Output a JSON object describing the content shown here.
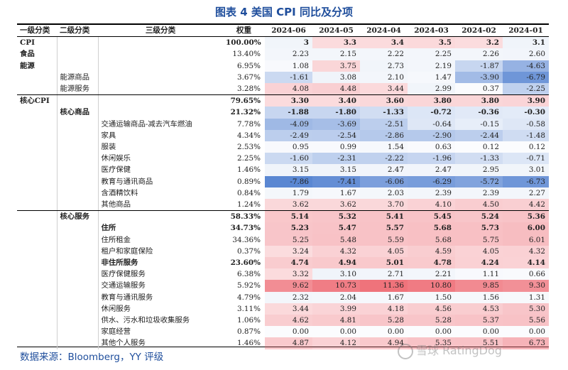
{
  "title": "图表 4 美国 CPI 同比及分项",
  "source": "数据来源：Bloomberg，YY 评级",
  "watermark": "雪球 RatingDog",
  "headers": {
    "level1": "一级分类",
    "level2": "二级分类",
    "level3": "三级分类",
    "weight": "权重",
    "months": [
      "2024-06",
      "2024-05",
      "2024-04",
      "2024-03",
      "2024-02",
      "2024-01"
    ]
  },
  "rows": [
    {
      "c1": "CPI",
      "c2": "",
      "c3": "",
      "w": "100.00%",
      "v": [
        "3",
        "3.3",
        "3.4",
        "3.5",
        "3.2",
        "3.1"
      ],
      "bold": true
    },
    {
      "c1": "食品",
      "c2": "",
      "c3": "",
      "w": "13.40%",
      "v": [
        "2.23",
        "2.15",
        "2.22",
        "2.25",
        "2.26",
        "2.60"
      ],
      "bold": false,
      "c1bold": true
    },
    {
      "c1": "能源",
      "c2": "",
      "c3": "",
      "w": "6.95%",
      "v": [
        "1.08",
        "3.75",
        "2.73",
        "2.19",
        "-1.87",
        "-4.63"
      ],
      "bold": false,
      "c1bold": true
    },
    {
      "c1": "",
      "c2": "能源商品",
      "c3": "",
      "w": "3.67%",
      "v": [
        "-1.61",
        "3.08",
        "2.10",
        "1.47",
        "-3.90",
        "-6.79"
      ],
      "bold": false
    },
    {
      "c1": "",
      "c2": "能源服务",
      "c3": "",
      "w": "3.28%",
      "v": [
        "4.08",
        "4.48",
        "3.44",
        "2.99",
        "0.37",
        "-2.25"
      ],
      "bold": false,
      "sep": true
    },
    {
      "c1": "核心CPI",
      "c2": "",
      "c3": "",
      "w": "79.65%",
      "v": [
        "3.30",
        "3.40",
        "3.60",
        "3.80",
        "3.80",
        "3.90"
      ],
      "bold": true
    },
    {
      "c1": "",
      "c2": "核心商品",
      "c3": "",
      "w": "21.32%",
      "v": [
        "-1.88",
        "-1.80",
        "-1.33",
        "-0.72",
        "-0.36",
        "-0.30"
      ],
      "bold": true
    },
    {
      "c1": "",
      "c2": "",
      "c3": "交通运输商品-减去汽车燃油",
      "w": "7.78%",
      "v": [
        "-4.09",
        "-3.69",
        "-2.51",
        "-0.64",
        "-0.15",
        "-0.58"
      ],
      "bold": false
    },
    {
      "c1": "",
      "c2": "",
      "c3": "家具",
      "w": "4.34%",
      "v": [
        "-2.49",
        "-2.54",
        "-2.86",
        "-2.90",
        "-2.44",
        "-1.48"
      ],
      "bold": false
    },
    {
      "c1": "",
      "c2": "",
      "c3": "服装",
      "w": "2.53%",
      "v": [
        "0.95",
        "0.99",
        "1.54",
        "0.63",
        "0.12",
        "0.12"
      ],
      "bold": false
    },
    {
      "c1": "",
      "c2": "",
      "c3": "休闲娱乐",
      "w": "2.25%",
      "v": [
        "-1.60",
        "-2.31",
        "-2.22",
        "-1.96",
        "-1.33",
        "-0.71"
      ],
      "bold": false
    },
    {
      "c1": "",
      "c2": "",
      "c3": "医疗保健",
      "w": "1.46%",
      "v": [
        "3.15",
        "3.15",
        "2.47",
        "2.47",
        "2.95",
        "3.01"
      ],
      "bold": false
    },
    {
      "c1": "",
      "c2": "",
      "c3": "教育与通讯商品",
      "w": "0.89%",
      "v": [
        "-7.86",
        "-7.41",
        "-6.06",
        "-6.29",
        "-5.72",
        "-6.73"
      ],
      "bold": false
    },
    {
      "c1": "",
      "c2": "",
      "c3": "含酒精饮料",
      "w": "0.84%",
      "v": [
        "1.79",
        "1.67",
        "2.03",
        "2.39",
        "2.39",
        "2.27"
      ],
      "bold": false
    },
    {
      "c1": "",
      "c2": "",
      "c3": "其他商品",
      "w": "1.24%",
      "v": [
        "3.62",
        "3.62",
        "3.70",
        "4.10",
        "4.50",
        "4.42"
      ],
      "bold": false,
      "sep": true
    },
    {
      "c1": "",
      "c2": "核心服务",
      "c3": "",
      "w": "58.33%",
      "v": [
        "5.14",
        "5.32",
        "5.41",
        "5.45",
        "5.24",
        "5.36"
      ],
      "bold": true
    },
    {
      "c1": "",
      "c2": "",
      "c3": "住所",
      "w": "34.73%",
      "v": [
        "5.23",
        "5.47",
        "5.57",
        "5.68",
        "5.73",
        "6.00"
      ],
      "bold": true
    },
    {
      "c1": "",
      "c2": "",
      "c3": "住所租金",
      "w": "34.36%",
      "v": [
        "5.25",
        "5.48",
        "5.59",
        "5.68",
        "5.75",
        "6.01"
      ],
      "bold": false
    },
    {
      "c1": "",
      "c2": "",
      "c3": "租户和家庭保险",
      "w": "0.37%",
      "v": [
        "3.24",
        "4.32",
        "4.05",
        "4.59",
        "4.05",
        "4.32"
      ],
      "bold": false
    },
    {
      "c1": "",
      "c2": "",
      "c3": "非住所服务",
      "w": "23.60%",
      "v": [
        "4.74",
        "4.94",
        "5.01",
        "4.78",
        "4.24",
        "4.14"
      ],
      "bold": true
    },
    {
      "c1": "",
      "c2": "",
      "c3": "医疗保健服务",
      "w": "6.38%",
      "v": [
        "3.32",
        "3.10",
        "2.71",
        "2.21",
        "1.11",
        "0.66"
      ],
      "bold": false
    },
    {
      "c1": "",
      "c2": "",
      "c3": "交通运输服务",
      "w": "5.92%",
      "v": [
        "9.62",
        "10.73",
        "11.36",
        "10.80",
        "9.85",
        "9.30"
      ],
      "bold": false
    },
    {
      "c1": "",
      "c2": "",
      "c3": "教育与通讯服务",
      "w": "4.79%",
      "v": [
        "2.32",
        "2.04",
        "1.67",
        "1.50",
        "1.56",
        "1.31"
      ],
      "bold": false
    },
    {
      "c1": "",
      "c2": "",
      "c3": "休闲服务",
      "w": "3.11%",
      "v": [
        "3.44",
        "3.99",
        "4.18",
        "4.56",
        "4.53",
        "5.30"
      ],
      "bold": false
    },
    {
      "c1": "",
      "c2": "",
      "c3": "供水、污水和垃圾收集服务",
      "w": "1.06%",
      "v": [
        "4.62",
        "4.81",
        "5.28",
        "5.28",
        "5.37",
        "5.56"
      ],
      "bold": false
    },
    {
      "c1": "",
      "c2": "",
      "c3": "家庭经营",
      "w": "0.87%",
      "v": [
        "0.00",
        "0.00",
        "0.00",
        "0.00",
        "0.00",
        "0.00"
      ],
      "bold": false
    },
    {
      "c1": "",
      "c2": "",
      "c3": "其他个人服务",
      "w": "1.46%",
      "v": [
        "4.87",
        "4.12",
        "4.94",
        "5.35",
        "5.51",
        "6.73"
      ],
      "bold": false
    }
  ]
}
